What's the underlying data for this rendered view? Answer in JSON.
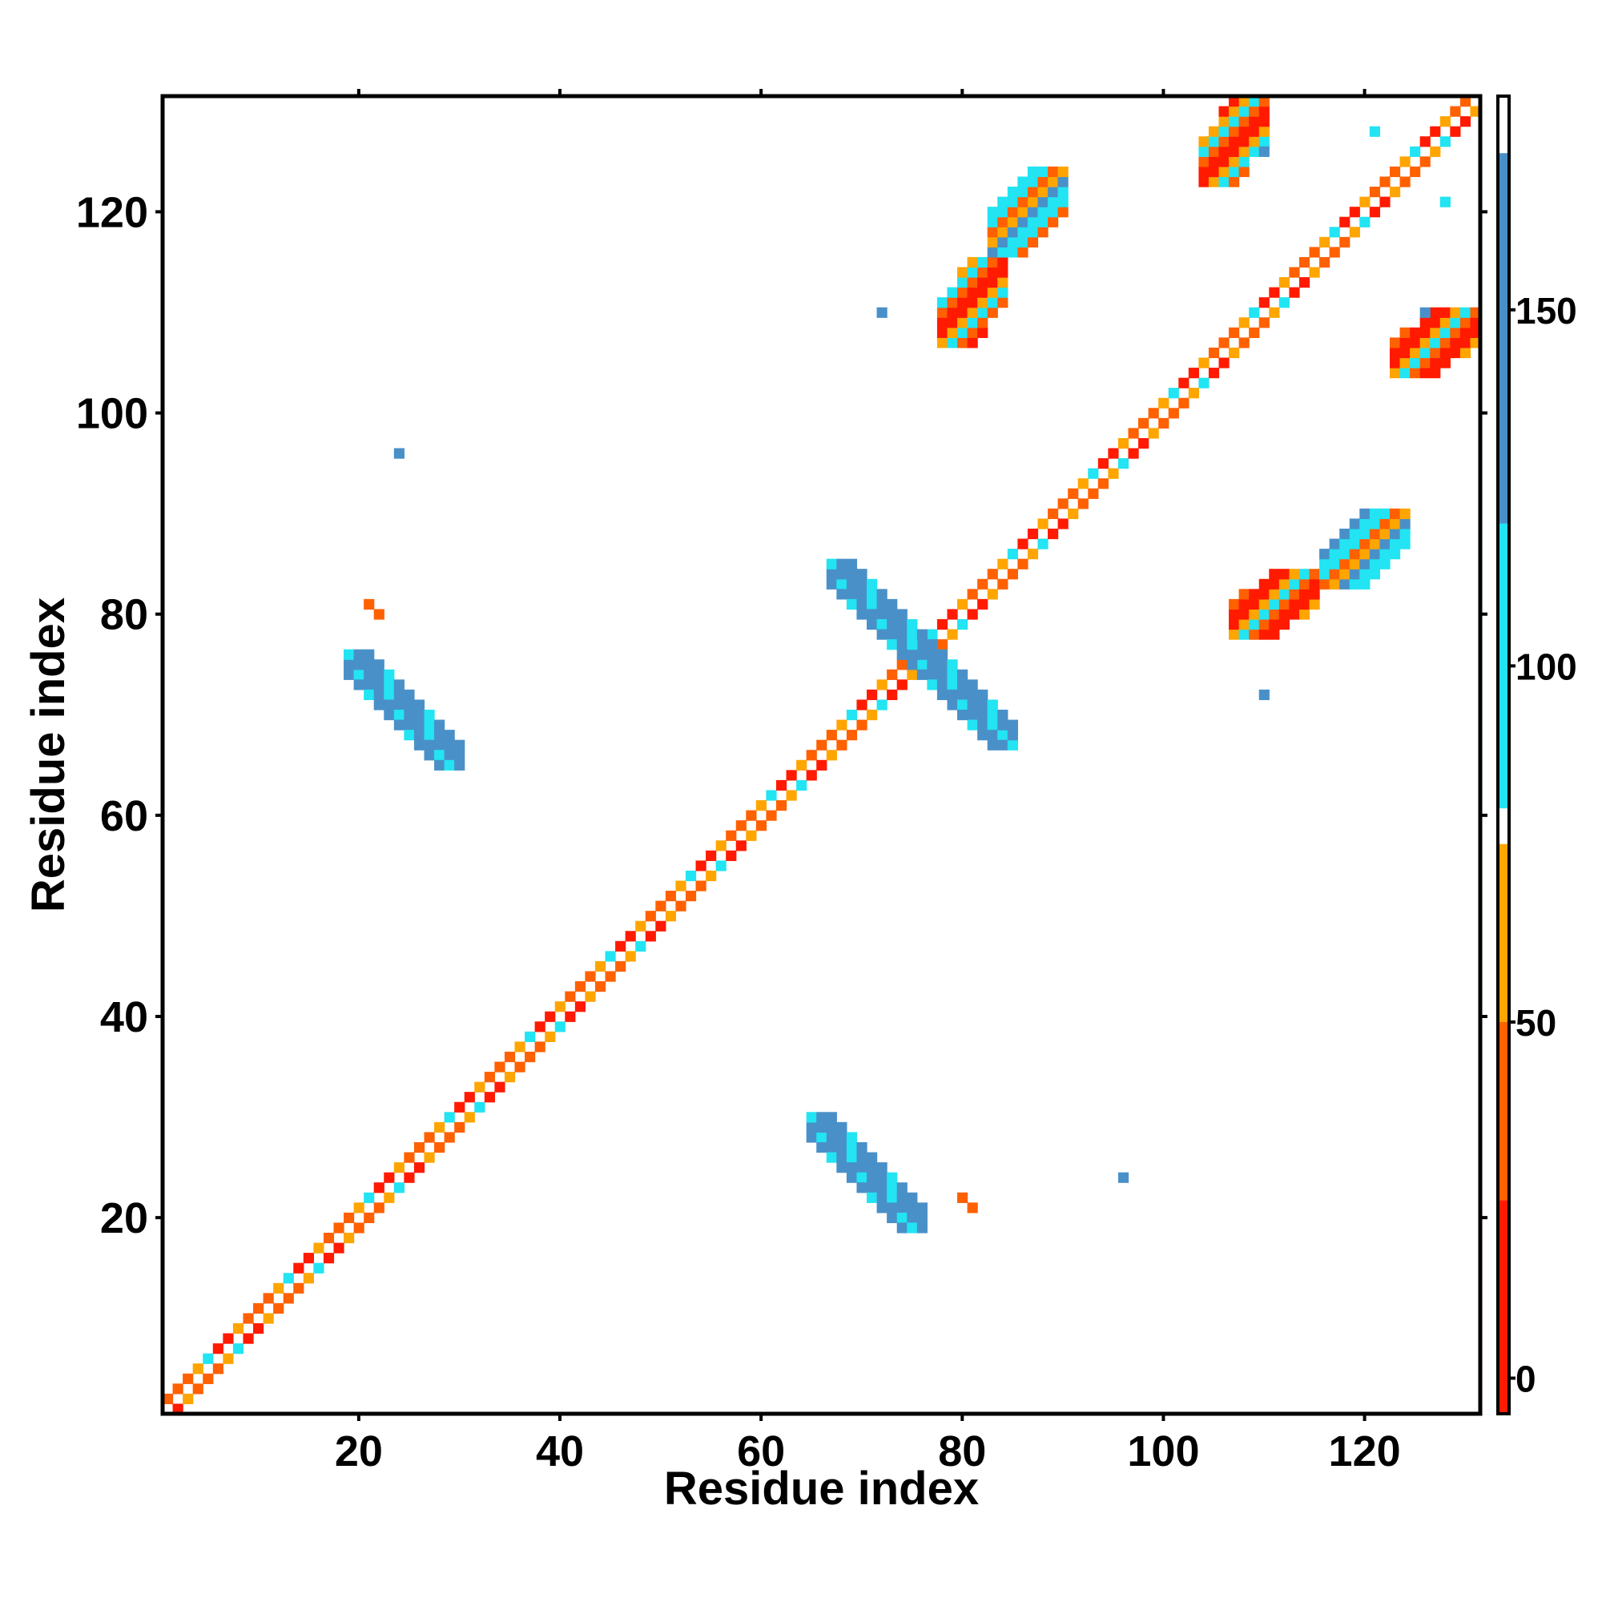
{
  "chart_data": {
    "type": "heatmap",
    "xlabel": "Residue index",
    "ylabel": "Residue index",
    "xlim": [
      0.5,
      131.5
    ],
    "ylim": [
      0.5,
      131.5
    ],
    "x_ticks": [
      20,
      40,
      60,
      80,
      100,
      120
    ],
    "y_ticks": [
      20,
      40,
      60,
      80,
      100,
      120
    ],
    "colorbar": {
      "range": [
        -5,
        180
      ],
      "ticks": [
        0,
        50,
        100,
        150
      ],
      "bands": [
        {
          "from": -5,
          "to": 25,
          "color": "#ff1a00"
        },
        {
          "from": 25,
          "to": 50,
          "color": "#ff6000"
        },
        {
          "from": 50,
          "to": 75,
          "color": "#ffa500"
        },
        {
          "from": 75,
          "to": 80,
          "color": "#ffffff"
        },
        {
          "from": 80,
          "to": 120,
          "color": "#22e4f2"
        },
        {
          "from": 120,
          "to": 172,
          "color": "#4a90c8"
        },
        {
          "from": 172,
          "to": 180,
          "color": "#ffffff"
        }
      ]
    },
    "regions": [
      {
        "name": "main-diagonal",
        "pattern": "diagonal",
        "from": 1,
        "to": 131,
        "halfwidth": 2
      },
      {
        "name": "blob-lower-1",
        "x": [
          66,
          75
        ],
        "y": [
          20,
          29
        ],
        "pattern": "anti",
        "value": 150
      },
      {
        "name": "blob-upper-1",
        "x": [
          20,
          29
        ],
        "y": [
          66,
          75
        ],
        "pattern": "anti",
        "value": 150
      },
      {
        "name": "blob-cross-a",
        "x": [
          68,
          84
        ],
        "y": [
          68,
          84
        ],
        "pattern": "anti",
        "value": 150
      },
      {
        "name": "blob-lower-2",
        "x": [
          107,
          115
        ],
        "y": [
          78,
          84
        ],
        "pattern": "fill",
        "value": 10
      },
      {
        "name": "blob-upper-2",
        "x": [
          78,
          84
        ],
        "y": [
          107,
          115
        ],
        "pattern": "fill",
        "value": 10
      },
      {
        "name": "blob-lower-3",
        "x": [
          116,
          124
        ],
        "y": [
          83,
          90
        ],
        "pattern": "fill",
        "value": 110
      },
      {
        "name": "blob-upper-3",
        "x": [
          83,
          90
        ],
        "y": [
          116,
          124
        ],
        "pattern": "fill",
        "value": 110
      },
      {
        "name": "blob-topright",
        "x": [
          104,
          110
        ],
        "y": [
          123,
          131
        ],
        "pattern": "fill",
        "value": 40
      },
      {
        "name": "blob-rightedge",
        "x": [
          123,
          131
        ],
        "y": [
          104,
          110
        ],
        "pattern": "fill",
        "value": 40
      }
    ],
    "cells": [
      [
        96,
        24,
        150
      ],
      [
        24,
        96,
        150
      ],
      [
        80,
        22,
        45
      ],
      [
        81,
        21,
        45
      ],
      [
        22,
        80,
        45
      ],
      [
        21,
        81,
        45
      ],
      [
        72,
        110,
        150
      ],
      [
        110,
        72,
        150
      ],
      [
        121,
        128,
        100
      ],
      [
        128,
        121,
        100
      ],
      [
        126,
        110,
        150
      ],
      [
        110,
        126,
        150
      ]
    ]
  }
}
